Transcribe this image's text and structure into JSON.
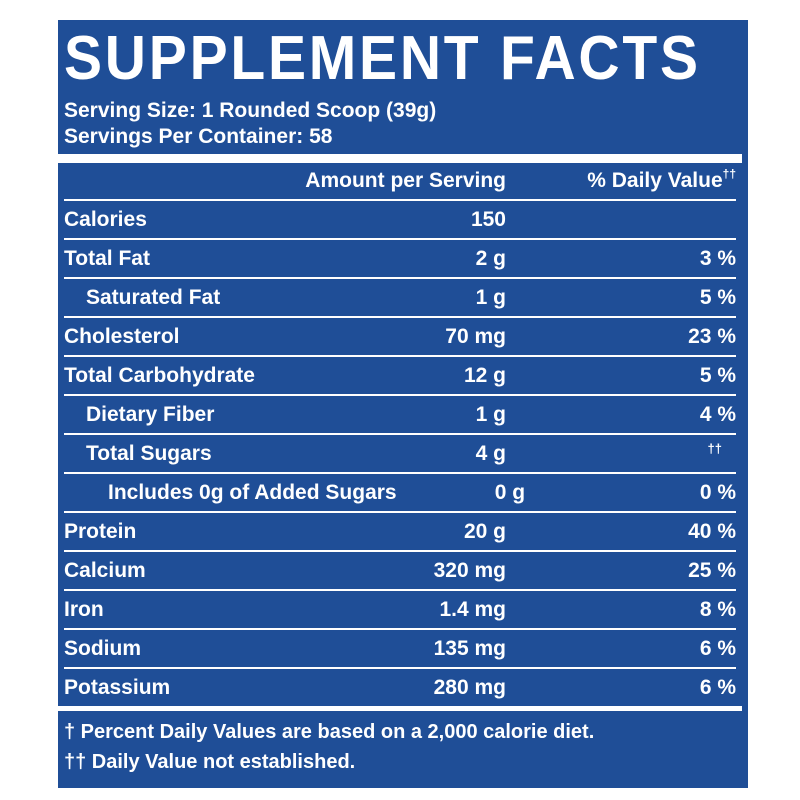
{
  "title": "SUPPLEMENT FACTS",
  "serving_size": "Serving Size: 1 Rounded Scoop (39g)",
  "servings_per_container": "Servings Per Container: 58",
  "header": {
    "amount": "Amount per Serving",
    "daily_value": "% Daily Value",
    "daily_value_mark": "††"
  },
  "rows": [
    {
      "name": "Calories",
      "amount": "150",
      "dv": ""
    },
    {
      "name": "Total Fat",
      "amount": "2 g",
      "dv": "3 %"
    },
    {
      "name": "Saturated Fat",
      "amount": "1 g",
      "dv": "5 %"
    },
    {
      "name": "Cholesterol",
      "amount": "70 mg",
      "dv": "23 %"
    },
    {
      "name": "Total Carbohydrate",
      "amount": "12 g",
      "dv": "5 %"
    },
    {
      "name": "Dietary Fiber",
      "amount": "1 g",
      "dv": "4 %"
    },
    {
      "name": "Total Sugars",
      "amount": "4 g",
      "dv": "††"
    },
    {
      "name": "Includes 0g of Added Sugars",
      "amount": "0 g",
      "dv": "0 %"
    },
    {
      "name": "Protein",
      "amount": "20 g",
      "dv": "40 %"
    },
    {
      "name": "Calcium",
      "amount": "320 mg",
      "dv": "25 %"
    },
    {
      "name": "Iron",
      "amount": "1.4 mg",
      "dv": "8 %"
    },
    {
      "name": "Sodium",
      "amount": "135 mg",
      "dv": "6 %"
    },
    {
      "name": "Potassium",
      "amount": "280 mg",
      "dv": "6 %"
    }
  ],
  "footnotes": [
    "† Percent Daily Values are based on a 2,000 calorie diet.",
    "†† Daily Value not established."
  ],
  "colors": {
    "background": "#1f4e97",
    "text": "#ffffff"
  }
}
